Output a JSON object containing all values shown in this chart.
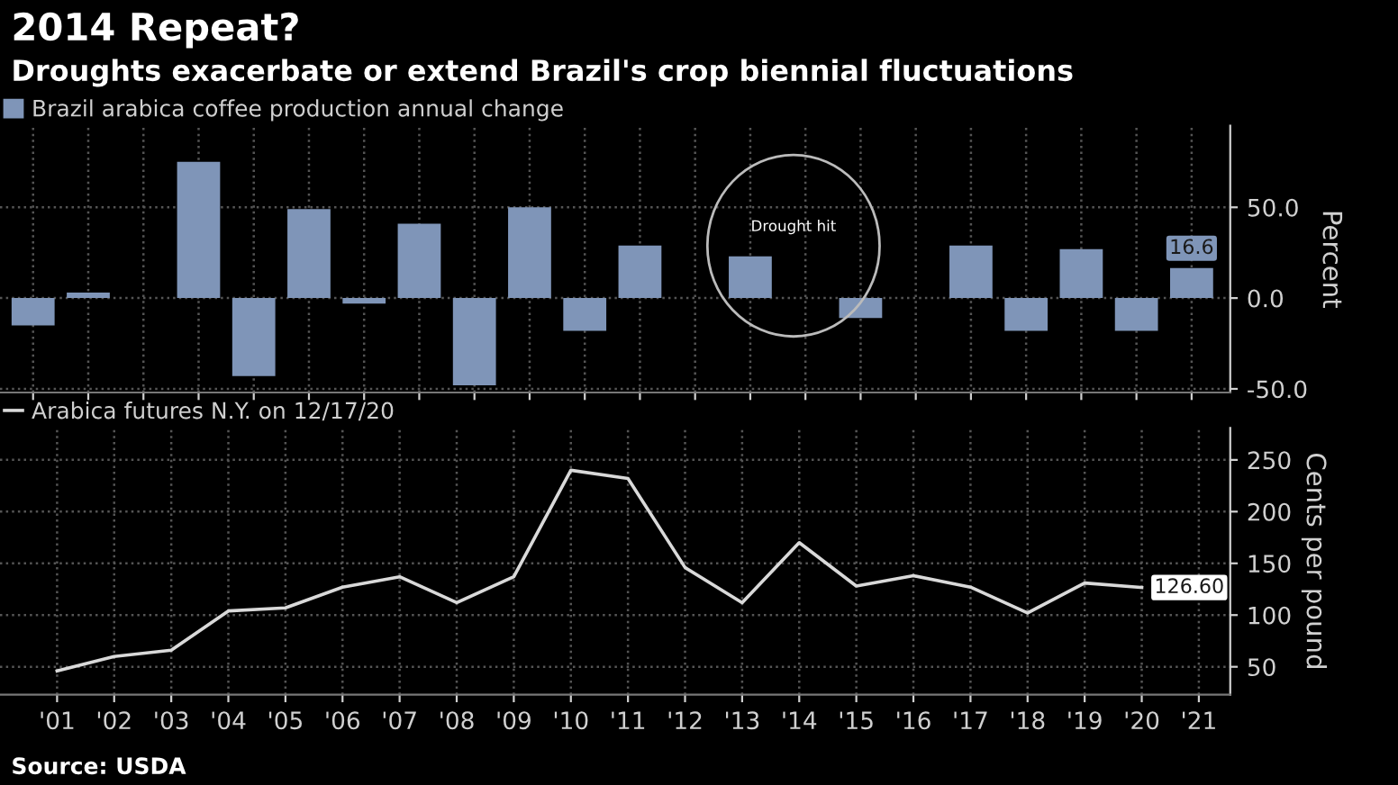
{
  "chart_data": [
    {
      "type": "bar",
      "title": "2014 Repeat?",
      "subtitle": "Droughts exacerbate or extend Brazil's crop biennial fluctuations",
      "categories": [
        null,
        null,
        null,
        null,
        null,
        null,
        null,
        null,
        null,
        null,
        null,
        null,
        null,
        null,
        null,
        null,
        null,
        null,
        null,
        null,
        null,
        null
      ],
      "series": [
        {
          "name": "Brazil arabica coffee production annual change",
          "color": "#7f95b8",
          "values": [
            -15,
            3,
            null,
            75,
            -43,
            49,
            -3,
            41,
            -48,
            50,
            -18,
            29,
            null,
            23,
            null,
            -11,
            null,
            29,
            -18,
            27,
            -18,
            16.6
          ],
          "value_labels": [
            null,
            null,
            null,
            null,
            null,
            null,
            null,
            null,
            null,
            null,
            null,
            null,
            null,
            null,
            null,
            null,
            null,
            null,
            null,
            null,
            null,
            "16.6"
          ]
        }
      ],
      "ylim": [
        -52,
        95
      ],
      "yticks": [
        {
          "value": 50,
          "label": "50.0"
        },
        {
          "value": 0,
          "label": "0.0"
        },
        {
          "value": -50,
          "label": "-50.0"
        }
      ],
      "ylabel": "Percent",
      "grid": true,
      "legend": "top left",
      "tick_labels": "y",
      "annotations": [
        "Drought hit"
      ]
    },
    {
      "type": "line",
      "x": [
        2001,
        2002,
        2003,
        2004,
        2005,
        2006,
        2007,
        2008,
        2009,
        2010,
        2011,
        2012,
        2013,
        2014,
        2015,
        2016,
        2017,
        2018,
        2019,
        2020
      ],
      "series": [
        {
          "name": "Arabica futures N.Y. on 12/17/20",
          "color": "#d9d9d9",
          "values": [
            46,
            60,
            66,
            104,
            107,
            127,
            137,
            112,
            137,
            240,
            232,
            146,
            112,
            170,
            128,
            138,
            127,
            102,
            131,
            126.6
          ],
          "value_labels": [
            null,
            null,
            null,
            null,
            null,
            null,
            null,
            null,
            null,
            null,
            null,
            null,
            null,
            null,
            null,
            null,
            null,
            null,
            null,
            "126.60"
          ]
        }
      ],
      "xlim": [
        2000,
        2021.55
      ],
      "xticks": [
        {
          "value": 2001,
          "label": "'01"
        },
        {
          "value": 2002,
          "label": "'02"
        },
        {
          "value": 2003,
          "label": "'03"
        },
        {
          "value": 2004,
          "label": "'04"
        },
        {
          "value": 2005,
          "label": "'05"
        },
        {
          "value": 2006,
          "label": "'06"
        },
        {
          "value": 2007,
          "label": "'07"
        },
        {
          "value": 2008,
          "label": "'08"
        },
        {
          "value": 2009,
          "label": "'09"
        },
        {
          "value": 2010,
          "label": "'10"
        },
        {
          "value": 2011,
          "label": "'11"
        },
        {
          "value": 2012,
          "label": "'12"
        },
        {
          "value": 2013,
          "label": "'13"
        },
        {
          "value": 2014,
          "label": "'14"
        },
        {
          "value": 2015,
          "label": "'15"
        },
        {
          "value": 2016,
          "label": "'16"
        },
        {
          "value": 2017,
          "label": "'17"
        },
        {
          "value": 2018,
          "label": "'18"
        },
        {
          "value": 2019,
          "label": "'19"
        },
        {
          "value": 2020,
          "label": "'20"
        },
        {
          "value": 2021,
          "label": "'21"
        }
      ],
      "ylim": [
        23,
        281
      ],
      "yticks": [
        50,
        100,
        150,
        200,
        250
      ],
      "ylabel": "Cents per pound",
      "grid": true,
      "legend": "top left",
      "marker": "none",
      "line_style": "solid",
      "annotations": [
        "Source: USDA"
      ]
    }
  ]
}
